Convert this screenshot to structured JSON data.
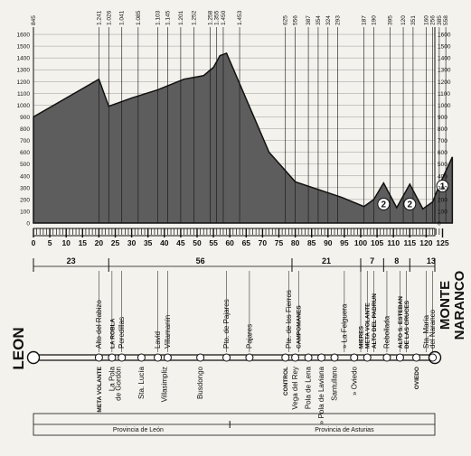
{
  "profile": {
    "y_ticks": [
      "0",
      "100",
      "200",
      "300",
      "400",
      "500",
      "600",
      "700",
      "800",
      "900",
      "1000",
      "1100",
      "1200",
      "1300",
      "1400",
      "1500",
      "1600"
    ],
    "top_altitudes": [
      {
        "km": 0,
        "label": "845"
      },
      {
        "km": 20,
        "label": "1.241"
      },
      {
        "km": 23,
        "label": "1.026"
      },
      {
        "km": 27,
        "label": "1.041"
      },
      {
        "km": 32,
        "label": "1.085"
      },
      {
        "km": 38,
        "label": "1.103"
      },
      {
        "km": 41,
        "label": "1.145"
      },
      {
        "km": 45,
        "label": "1.201"
      },
      {
        "km": 49,
        "label": "1.252"
      },
      {
        "km": 54,
        "label": "1.258"
      },
      {
        "km": 56,
        "label": "1.355"
      },
      {
        "km": 58,
        "label": "1.450"
      },
      {
        "km": 63,
        "label": "1.453"
      },
      {
        "km": 77,
        "label": "625"
      },
      {
        "km": 80,
        "label": "556"
      },
      {
        "km": 84,
        "label": "387"
      },
      {
        "km": 87,
        "label": "354"
      },
      {
        "km": 90,
        "label": "324"
      },
      {
        "km": 93,
        "label": "293"
      },
      {
        "km": 101,
        "label": "187"
      },
      {
        "km": 104,
        "label": "190"
      },
      {
        "km": 109,
        "label": "395"
      },
      {
        "km": 113,
        "label": "120"
      },
      {
        "km": 116,
        "label": "351"
      },
      {
        "km": 120,
        "label": "160"
      },
      {
        "km": 122,
        "label": "256"
      },
      {
        "km": 124,
        "label": "385"
      },
      {
        "km": 126,
        "label": "558"
      }
    ],
    "points": [
      [
        0,
        900
      ],
      [
        20,
        1220
      ],
      [
        23,
        990
      ],
      [
        30,
        1060
      ],
      [
        38,
        1130
      ],
      [
        46,
        1220
      ],
      [
        52,
        1250
      ],
      [
        55,
        1320
      ],
      [
        57,
        1420
      ],
      [
        59,
        1440
      ],
      [
        72,
        600
      ],
      [
        80,
        350
      ],
      [
        94,
        220
      ],
      [
        101,
        140
      ],
      [
        104,
        200
      ],
      [
        107,
        340
      ],
      [
        111,
        130
      ],
      [
        115,
        330
      ],
      [
        119,
        120
      ],
      [
        122,
        180
      ],
      [
        124,
        320
      ],
      [
        128,
        560
      ]
    ],
    "climbs": [
      {
        "km": 107,
        "label": "2"
      },
      {
        "km": 115,
        "label": "2"
      },
      {
        "km": 125,
        "label": "1"
      }
    ],
    "km_ticks": [
      "0",
      "5",
      "10",
      "15",
      "20",
      "25",
      "30",
      "35",
      "40",
      "45",
      "50",
      "55",
      "60",
      "65",
      "70",
      "75",
      "80",
      "85",
      "90",
      "95",
      "100",
      "105",
      "110",
      "115",
      "120",
      "125"
    ]
  },
  "segments": [
    {
      "from": 0,
      "to": 23,
      "label": "23"
    },
    {
      "from": 23,
      "to": 79,
      "label": "56"
    },
    {
      "from": 79,
      "to": 100,
      "label": "21"
    },
    {
      "from": 100,
      "to": 107,
      "label": "7"
    },
    {
      "from": 107,
      "to": 115,
      "label": "8"
    },
    {
      "from": 115,
      "to": 128,
      "label": "13"
    }
  ],
  "start": "LEON",
  "finish_line1": "MONTE",
  "finish_line2": "NARANCO",
  "above_places": [
    {
      "km": 20,
      "text": "Alto del Rabizo"
    },
    {
      "km": 24,
      "text": "LA ROBLA",
      "bold": true
    },
    {
      "km": 27,
      "text": "Peredillas"
    },
    {
      "km": 38,
      "text": "Lavid"
    },
    {
      "km": 41,
      "text": "Villamanín"
    },
    {
      "km": 59,
      "text": "Pto. de Pajares"
    },
    {
      "km": 66,
      "text": "Pajares"
    },
    {
      "km": 78,
      "text": "Pte. de los Fierros"
    },
    {
      "km": 81,
      "text": "CAMPOMANES",
      "bold": true
    },
    {
      "km": 95,
      "text": "» La Felguera"
    },
    {
      "km": 100,
      "text": "MIERES",
      "bold": true
    },
    {
      "km": 102,
      "text": "META VOLANTE",
      "bold": true
    },
    {
      "km": 104,
      "text": "ALTO DEL PADRUN",
      "bold": true
    },
    {
      "km": 108,
      "text": "Rebollada"
    },
    {
      "km": 112,
      "text": "ALTO S. ESTEBAN",
      "bold": true
    },
    {
      "km": 114,
      "text": "DE LAS CRUCES",
      "bold": true
    },
    {
      "km": 120,
      "text": "Sta. María"
    },
    {
      "km": 122,
      "text": "del Naranco"
    }
  ],
  "below_places": [
    {
      "km": 20,
      "text": "META VOLANTE",
      "bold": true
    },
    {
      "km": 24,
      "text": "La Pola"
    },
    {
      "km": 26,
      "text": "de Gordón"
    },
    {
      "km": 33,
      "text": "Sta. Lucía"
    },
    {
      "km": 40,
      "text": "Villasimpliz"
    },
    {
      "km": 51,
      "text": "Busdongo"
    },
    {
      "km": 77,
      "text": "CONTROL",
      "bold": true
    },
    {
      "km": 80,
      "text": "Vega del Rey"
    },
    {
      "km": 84,
      "text": "Pola de Lena"
    },
    {
      "km": 88,
      "text": "» Pola de Laviana"
    },
    {
      "km": 92,
      "text": "Santullano"
    },
    {
      "km": 98,
      "text": "» Oviedo"
    },
    {
      "km": 117,
      "text": "OVIEDO",
      "bold": true
    }
  ],
  "provinces": {
    "leon": "Provincia de León",
    "asturias": "Provincia de Asturias"
  },
  "colors": {
    "profile_fill": "#5d5d5d",
    "ink": "#111111",
    "paper": "#f4f2ec"
  }
}
